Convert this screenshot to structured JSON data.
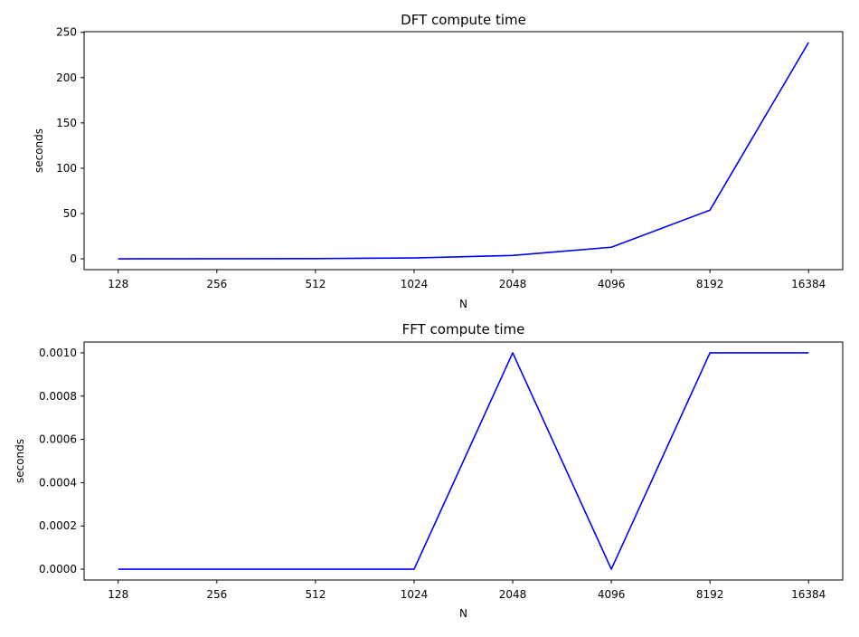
{
  "chart_data": [
    {
      "type": "line",
      "title": "DFT compute time",
      "xlabel": "N",
      "ylabel": "seconds",
      "categories": [
        "128",
        "256",
        "512",
        "1024",
        "2048",
        "4096",
        "8192",
        "16384"
      ],
      "series": [
        {
          "color": "#0000ff",
          "values": [
            0.05,
            0.1,
            0.3,
            1.0,
            3.8,
            12.8,
            53.8,
            238.8
          ]
        }
      ],
      "yticks": [
        0,
        50,
        100,
        150,
        200,
        250
      ],
      "ytick_labels": [
        "0",
        "50",
        "100",
        "150",
        "200",
        "250"
      ],
      "ylim": [
        -11.9,
        250.7
      ],
      "grid": false,
      "legend": "none"
    },
    {
      "type": "line",
      "title": "FFT compute time",
      "xlabel": "N",
      "ylabel": "seconds",
      "categories": [
        "128",
        "256",
        "512",
        "1024",
        "2048",
        "4096",
        "8192",
        "16384"
      ],
      "series": [
        {
          "color": "#0000ff",
          "values": [
            0.0,
            0.0,
            0.0,
            0.0,
            0.001,
            0.0,
            0.001,
            0.001
          ]
        }
      ],
      "yticks": [
        0.0,
        0.0002,
        0.0004,
        0.0006,
        0.0008,
        0.001
      ],
      "ytick_labels": [
        "0.0000",
        "0.0002",
        "0.0004",
        "0.0006",
        "0.0008",
        "0.0010"
      ],
      "ylim": [
        -5e-05,
        0.00105
      ],
      "grid": false,
      "legend": "none"
    }
  ]
}
